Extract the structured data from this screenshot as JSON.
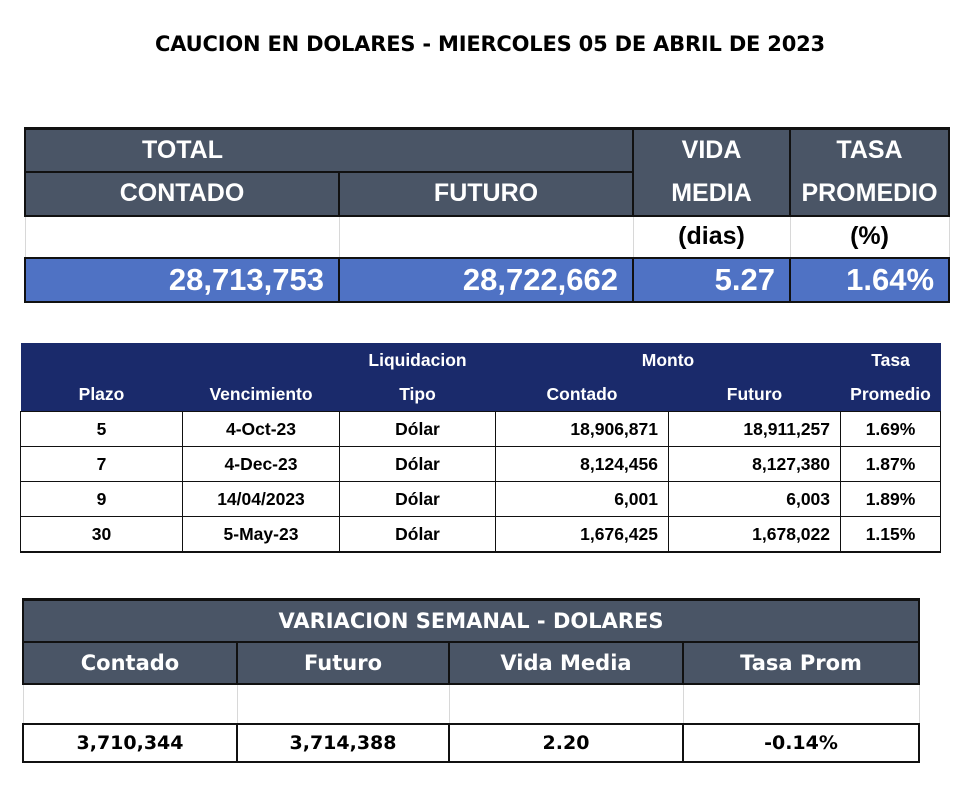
{
  "title": "CAUCION EN DOLARES - MIERCOLES 05 DE ABRIL DE 2023",
  "summary": {
    "total_label": "TOTAL",
    "contado_label": "CONTADO",
    "futuro_label": "FUTURO",
    "vida_label_1": "VIDA",
    "vida_label_2": "MEDIA",
    "tasa_label_1": "TASA",
    "tasa_label_2": "PROMEDIO",
    "vida_unit": "(dias)",
    "tasa_unit": "(%)",
    "contado": "28,713,753",
    "futuro": "28,722,662",
    "vida_media": "5.27",
    "tasa_promedio": "1.64%"
  },
  "detail": {
    "headers": {
      "liquidacion": "Liquidacion",
      "monto": "Monto",
      "tasa": "Tasa",
      "plazo": "Plazo",
      "vencimiento": "Vencimiento",
      "tipo": "Tipo",
      "contado": "Contado",
      "futuro": "Futuro",
      "promedio": "Promedio"
    },
    "rows": [
      {
        "plazo": "5",
        "vencimiento": "4-Oct-23",
        "tipo": "Dólar",
        "contado": "18,906,871",
        "futuro": "18,911,257",
        "tasa": "1.69%"
      },
      {
        "plazo": "7",
        "vencimiento": "4-Dec-23",
        "tipo": "Dólar",
        "contado": "8,124,456",
        "futuro": "8,127,380",
        "tasa": "1.87%"
      },
      {
        "plazo": "9",
        "vencimiento": "14/04/2023",
        "tipo": "Dólar",
        "contado": "6,001",
        "futuro": "6,003",
        "tasa": "1.89%"
      },
      {
        "plazo": "30",
        "vencimiento": "5-May-23",
        "tipo": "Dólar",
        "contado": "1,676,425",
        "futuro": "1,678,022",
        "tasa": "1.15%"
      }
    ]
  },
  "weekly": {
    "title": "VARIACION SEMANAL - DOLARES",
    "contado_label": "Contado",
    "futuro_label": "Futuro",
    "vida_label": "Vida Media",
    "tasa_label": "Tasa Prom",
    "contado": "3,710,344",
    "futuro": "3,714,388",
    "vida_media": "2.20",
    "tasa_prom": "-0.14%"
  },
  "colors": {
    "header_gray": "#4a5566",
    "value_blue": "#4f72c4",
    "navy": "#1a2a6b"
  }
}
